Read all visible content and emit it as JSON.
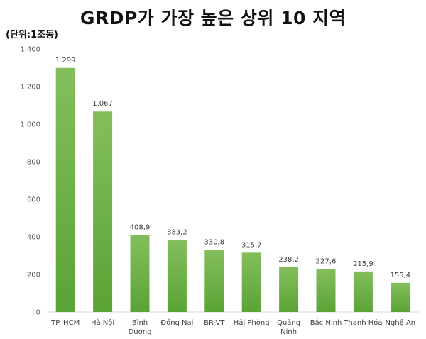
{
  "chart_data": {
    "type": "bar",
    "title": "GRDP가 가장 높은 상위 10 지역",
    "unit_label": "(단위:1조동)",
    "categories": [
      "TP. HCM",
      "Hà Nội",
      "Bình Dương",
      "Đồng Nai",
      "BR-VT",
      "Hải Phòng",
      "Quảng Ninh",
      "Bắc Ninh",
      "Thanh Hóa",
      "Nghệ An"
    ],
    "category_lines": [
      [
        "TP. HCM"
      ],
      [
        "Hà Nội"
      ],
      [
        "Bình",
        "Dương"
      ],
      [
        "Đồng Nai"
      ],
      [
        "BR-VT"
      ],
      [
        "Hải Phòng"
      ],
      [
        "Quảng",
        "Ninh"
      ],
      [
        "Bắc Ninh"
      ],
      [
        "Thanh Hóa"
      ],
      [
        "Nghệ An"
      ]
    ],
    "values": [
      1299,
      1067,
      408.9,
      383.2,
      330.8,
      315.7,
      238.2,
      227.6,
      215.9,
      155.4
    ],
    "data_labels": [
      "1.299",
      "1.067",
      "408,9",
      "383,2",
      "330,8",
      "315,7",
      "238,2",
      "227,6",
      "215,9",
      "155,4"
    ],
    "ylim": [
      0,
      1400
    ],
    "yticks": [
      0,
      200,
      400,
      600,
      800,
      1000,
      1200,
      1400
    ],
    "ytick_labels": [
      "0",
      "200",
      "400",
      "600",
      "800",
      "1.000",
      "1.200",
      "1.400"
    ],
    "grid": false,
    "legend": "none",
    "bar_color_top": "#84BE5C",
    "bar_color_bottom": "#5AA336"
  }
}
